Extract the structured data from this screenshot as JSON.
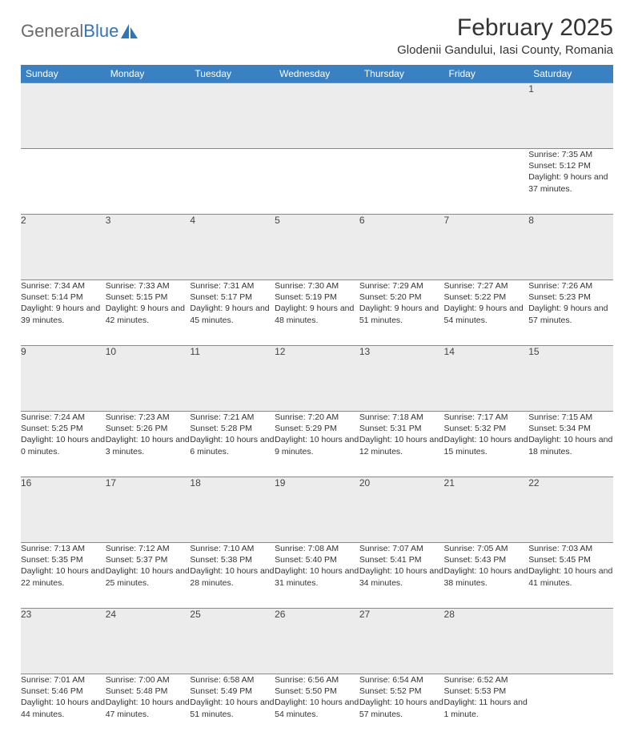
{
  "logo": {
    "text_general": "General",
    "text_blue": "Blue"
  },
  "header": {
    "month_title": "February 2025",
    "location": "Glodenii Gandului, Iasi County, Romania"
  },
  "colors": {
    "header_bg": "#3a81c4",
    "row_sep": "#5a94c8",
    "daynum_bg": "#ececec",
    "text": "#333333"
  },
  "day_headers": [
    "Sunday",
    "Monday",
    "Tuesday",
    "Wednesday",
    "Thursday",
    "Friday",
    "Saturday"
  ],
  "weeks": [
    [
      null,
      null,
      null,
      null,
      null,
      null,
      {
        "n": "1",
        "sunrise": "7:35 AM",
        "sunset": "5:12 PM",
        "daylight": "9 hours and 37 minutes."
      }
    ],
    [
      {
        "n": "2",
        "sunrise": "7:34 AM",
        "sunset": "5:14 PM",
        "daylight": "9 hours and 39 minutes."
      },
      {
        "n": "3",
        "sunrise": "7:33 AM",
        "sunset": "5:15 PM",
        "daylight": "9 hours and 42 minutes."
      },
      {
        "n": "4",
        "sunrise": "7:31 AM",
        "sunset": "5:17 PM",
        "daylight": "9 hours and 45 minutes."
      },
      {
        "n": "5",
        "sunrise": "7:30 AM",
        "sunset": "5:19 PM",
        "daylight": "9 hours and 48 minutes."
      },
      {
        "n": "6",
        "sunrise": "7:29 AM",
        "sunset": "5:20 PM",
        "daylight": "9 hours and 51 minutes."
      },
      {
        "n": "7",
        "sunrise": "7:27 AM",
        "sunset": "5:22 PM",
        "daylight": "9 hours and 54 minutes."
      },
      {
        "n": "8",
        "sunrise": "7:26 AM",
        "sunset": "5:23 PM",
        "daylight": "9 hours and 57 minutes."
      }
    ],
    [
      {
        "n": "9",
        "sunrise": "7:24 AM",
        "sunset": "5:25 PM",
        "daylight": "10 hours and 0 minutes."
      },
      {
        "n": "10",
        "sunrise": "7:23 AM",
        "sunset": "5:26 PM",
        "daylight": "10 hours and 3 minutes."
      },
      {
        "n": "11",
        "sunrise": "7:21 AM",
        "sunset": "5:28 PM",
        "daylight": "10 hours and 6 minutes."
      },
      {
        "n": "12",
        "sunrise": "7:20 AM",
        "sunset": "5:29 PM",
        "daylight": "10 hours and 9 minutes."
      },
      {
        "n": "13",
        "sunrise": "7:18 AM",
        "sunset": "5:31 PM",
        "daylight": "10 hours and 12 minutes."
      },
      {
        "n": "14",
        "sunrise": "7:17 AM",
        "sunset": "5:32 PM",
        "daylight": "10 hours and 15 minutes."
      },
      {
        "n": "15",
        "sunrise": "7:15 AM",
        "sunset": "5:34 PM",
        "daylight": "10 hours and 18 minutes."
      }
    ],
    [
      {
        "n": "16",
        "sunrise": "7:13 AM",
        "sunset": "5:35 PM",
        "daylight": "10 hours and 22 minutes."
      },
      {
        "n": "17",
        "sunrise": "7:12 AM",
        "sunset": "5:37 PM",
        "daylight": "10 hours and 25 minutes."
      },
      {
        "n": "18",
        "sunrise": "7:10 AM",
        "sunset": "5:38 PM",
        "daylight": "10 hours and 28 minutes."
      },
      {
        "n": "19",
        "sunrise": "7:08 AM",
        "sunset": "5:40 PM",
        "daylight": "10 hours and 31 minutes."
      },
      {
        "n": "20",
        "sunrise": "7:07 AM",
        "sunset": "5:41 PM",
        "daylight": "10 hours and 34 minutes."
      },
      {
        "n": "21",
        "sunrise": "7:05 AM",
        "sunset": "5:43 PM",
        "daylight": "10 hours and 38 minutes."
      },
      {
        "n": "22",
        "sunrise": "7:03 AM",
        "sunset": "5:45 PM",
        "daylight": "10 hours and 41 minutes."
      }
    ],
    [
      {
        "n": "23",
        "sunrise": "7:01 AM",
        "sunset": "5:46 PM",
        "daylight": "10 hours and 44 minutes."
      },
      {
        "n": "24",
        "sunrise": "7:00 AM",
        "sunset": "5:48 PM",
        "daylight": "10 hours and 47 minutes."
      },
      {
        "n": "25",
        "sunrise": "6:58 AM",
        "sunset": "5:49 PM",
        "daylight": "10 hours and 51 minutes."
      },
      {
        "n": "26",
        "sunrise": "6:56 AM",
        "sunset": "5:50 PM",
        "daylight": "10 hours and 54 minutes."
      },
      {
        "n": "27",
        "sunrise": "6:54 AM",
        "sunset": "5:52 PM",
        "daylight": "10 hours and 57 minutes."
      },
      {
        "n": "28",
        "sunrise": "6:52 AM",
        "sunset": "5:53 PM",
        "daylight": "11 hours and 1 minute."
      },
      null
    ]
  ],
  "labels": {
    "sunrise": "Sunrise:",
    "sunset": "Sunset:",
    "daylight": "Daylight:"
  }
}
